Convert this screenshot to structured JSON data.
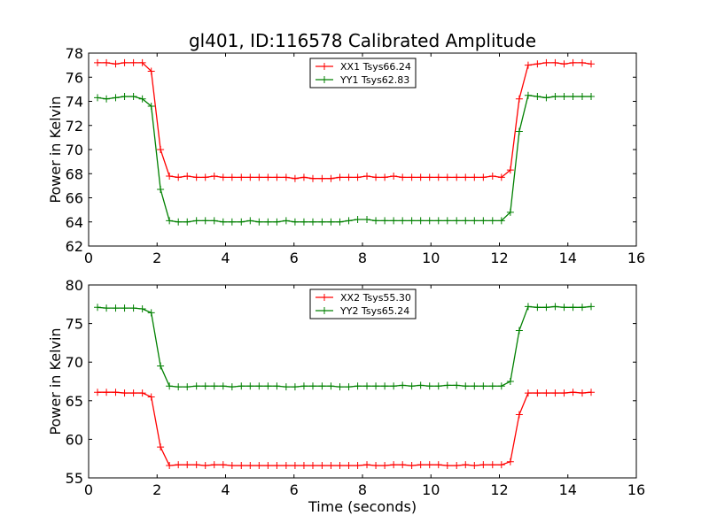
{
  "figure": {
    "title": "gl401, ID:116578 Calibrated Amplitude",
    "xlabel": "Time (seconds)"
  },
  "chart_data": [
    {
      "type": "line",
      "title": "gl401, ID:116578 Calibrated Amplitude",
      "xlabel": "",
      "ylabel": "Power in Kelvin",
      "xlim": [
        0,
        16
      ],
      "ylim": [
        62,
        78
      ],
      "xticks": [
        0,
        2,
        4,
        6,
        8,
        10,
        12,
        14,
        16
      ],
      "yticks": [
        62,
        64,
        66,
        68,
        70,
        72,
        74,
        76,
        78
      ],
      "grid": false,
      "legend_position": "top-center",
      "x": [
        0.26,
        0.52,
        0.79,
        1.05,
        1.31,
        1.57,
        1.83,
        2.1,
        2.36,
        2.62,
        2.88,
        3.15,
        3.41,
        3.67,
        3.93,
        4.19,
        4.46,
        4.72,
        4.98,
        5.24,
        5.5,
        5.77,
        6.03,
        6.29,
        6.55,
        6.82,
        7.08,
        7.34,
        7.6,
        7.86,
        8.13,
        8.39,
        8.65,
        8.91,
        9.17,
        9.44,
        9.7,
        9.96,
        10.22,
        10.48,
        10.75,
        11.01,
        11.27,
        11.53,
        11.8,
        12.06,
        12.32,
        12.58,
        12.84,
        13.11,
        13.37,
        13.63,
        13.89,
        14.15,
        14.42,
        14.68
      ],
      "series": [
        {
          "name": "XX1 Tsys66.24",
          "color": "#ff0000",
          "values": [
            77.2,
            77.2,
            77.1,
            77.2,
            77.2,
            77.2,
            76.5,
            70.0,
            67.8,
            67.7,
            67.8,
            67.7,
            67.7,
            67.8,
            67.7,
            67.7,
            67.7,
            67.7,
            67.7,
            67.7,
            67.7,
            67.7,
            67.6,
            67.7,
            67.6,
            67.6,
            67.6,
            67.7,
            67.7,
            67.7,
            67.8,
            67.7,
            67.7,
            67.8,
            67.7,
            67.7,
            67.7,
            67.7,
            67.7,
            67.7,
            67.7,
            67.7,
            67.7,
            67.7,
            67.8,
            67.7,
            68.3,
            74.2,
            77.0,
            77.1,
            77.2,
            77.2,
            77.1,
            77.2,
            77.2,
            77.1
          ]
        },
        {
          "name": "YY1 Tsys62.83",
          "color": "#008000",
          "values": [
            74.3,
            74.2,
            74.3,
            74.4,
            74.4,
            74.2,
            73.6,
            66.7,
            64.1,
            64.0,
            64.0,
            64.1,
            64.1,
            64.1,
            64.0,
            64.0,
            64.0,
            64.1,
            64.0,
            64.0,
            64.0,
            64.1,
            64.0,
            64.0,
            64.0,
            64.0,
            64.0,
            64.0,
            64.1,
            64.2,
            64.2,
            64.1,
            64.1,
            64.1,
            64.1,
            64.1,
            64.1,
            64.1,
            64.1,
            64.1,
            64.1,
            64.1,
            64.1,
            64.1,
            64.1,
            64.1,
            64.8,
            71.5,
            74.5,
            74.4,
            74.3,
            74.4,
            74.4,
            74.4,
            74.4,
            74.4
          ]
        }
      ]
    },
    {
      "type": "line",
      "title": "",
      "xlabel": "Time (seconds)",
      "ylabel": "Power in Kelvin",
      "xlim": [
        0,
        16
      ],
      "ylim": [
        55,
        80
      ],
      "xticks": [
        0,
        2,
        4,
        6,
        8,
        10,
        12,
        14,
        16
      ],
      "yticks": [
        55,
        60,
        65,
        70,
        75,
        80
      ],
      "grid": false,
      "legend_position": "top-center",
      "x": [
        0.26,
        0.52,
        0.79,
        1.05,
        1.31,
        1.57,
        1.83,
        2.1,
        2.36,
        2.62,
        2.88,
        3.15,
        3.41,
        3.67,
        3.93,
        4.19,
        4.46,
        4.72,
        4.98,
        5.24,
        5.5,
        5.77,
        6.03,
        6.29,
        6.55,
        6.82,
        7.08,
        7.34,
        7.6,
        7.86,
        8.13,
        8.39,
        8.65,
        8.91,
        9.17,
        9.44,
        9.7,
        9.96,
        10.22,
        10.48,
        10.75,
        11.01,
        11.27,
        11.53,
        11.8,
        12.06,
        12.32,
        12.58,
        12.84,
        13.11,
        13.37,
        13.63,
        13.89,
        14.15,
        14.42,
        14.68
      ],
      "series": [
        {
          "name": "XX2 Tsys55.30",
          "color": "#ff0000",
          "values": [
            66.1,
            66.1,
            66.1,
            66.0,
            66.0,
            66.0,
            65.5,
            59.0,
            56.6,
            56.7,
            56.7,
            56.7,
            56.6,
            56.7,
            56.7,
            56.6,
            56.6,
            56.6,
            56.6,
            56.6,
            56.6,
            56.6,
            56.6,
            56.6,
            56.6,
            56.6,
            56.6,
            56.6,
            56.6,
            56.6,
            56.7,
            56.6,
            56.6,
            56.7,
            56.7,
            56.6,
            56.7,
            56.7,
            56.7,
            56.6,
            56.6,
            56.7,
            56.6,
            56.7,
            56.7,
            56.7,
            57.1,
            63.2,
            66.0,
            66.0,
            66.0,
            66.0,
            66.0,
            66.1,
            66.0,
            66.1
          ]
        },
        {
          "name": "YY2 Tsys65.24",
          "color": "#008000",
          "values": [
            77.1,
            77.0,
            77.0,
            77.0,
            77.0,
            76.9,
            76.4,
            69.5,
            66.9,
            66.8,
            66.8,
            66.9,
            66.9,
            66.9,
            66.9,
            66.8,
            66.9,
            66.9,
            66.9,
            66.9,
            66.9,
            66.8,
            66.8,
            66.9,
            66.9,
            66.9,
            66.9,
            66.8,
            66.8,
            66.9,
            66.9,
            66.9,
            66.9,
            66.9,
            67.0,
            66.9,
            67.0,
            66.9,
            66.9,
            67.0,
            67.0,
            66.9,
            66.9,
            66.9,
            66.9,
            66.9,
            67.5,
            74.1,
            77.2,
            77.1,
            77.1,
            77.2,
            77.1,
            77.1,
            77.1,
            77.2
          ]
        }
      ]
    }
  ]
}
